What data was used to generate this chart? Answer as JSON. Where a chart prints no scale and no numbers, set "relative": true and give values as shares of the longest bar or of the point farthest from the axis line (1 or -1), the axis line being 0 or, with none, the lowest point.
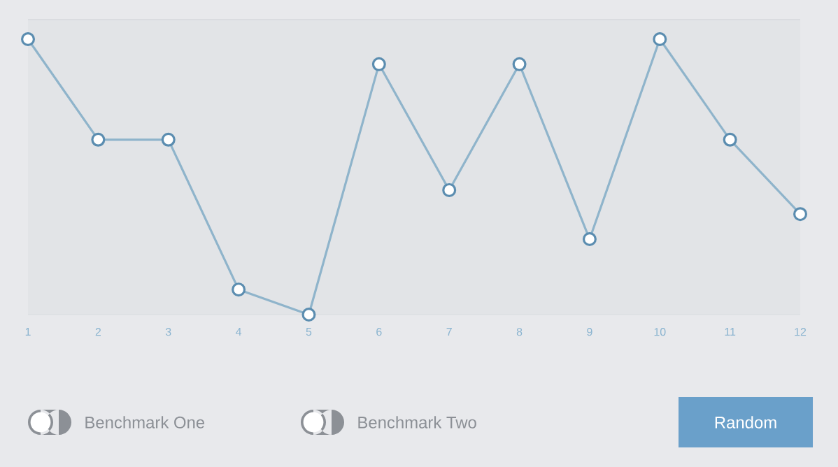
{
  "chart_data": {
    "type": "line",
    "relative": true,
    "categories": [
      "1",
      "2",
      "3",
      "4",
      "5",
      "6",
      "7",
      "8",
      "9",
      "10",
      "11",
      "12"
    ],
    "series": [
      {
        "color": "#8fb4cb",
        "values": [
          1,
          0.635,
          0.635,
          0.091,
          0,
          0.909,
          0.452,
          0.909,
          0.274,
          1,
          0.635,
          0.365
        ]
      }
    ],
    "marker": "circle",
    "line_style": "solid",
    "annotations": [
      "Benchmark One",
      "Benchmark Two",
      "Random"
    ]
  }
}
